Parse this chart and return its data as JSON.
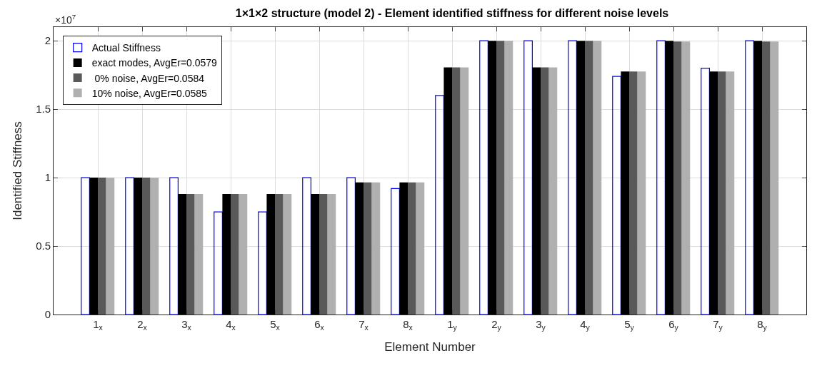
{
  "chart_data": {
    "type": "bar",
    "title": "1×1×2 structure (model 2) - Element identified stiffness for different noise levels",
    "xlabel": "Element Number",
    "ylabel": "Identified Stiffness",
    "annotations": [
      "×10$^{7}$"
    ],
    "categories": [
      "1$_{x}$",
      "2$_{x}$",
      "3$_{x}$",
      "4$_{x}$",
      "5$_{x}$",
      "6$_{x}$",
      "7$_{x}$",
      "8$_{x}$",
      "1$_{y}$",
      "2$_{y}$",
      "3$_{y}$",
      "4$_{y}$",
      "5$_{y}$",
      "6$_{y}$",
      "7$_{y}$",
      "8$_{y}$"
    ],
    "series": [
      {
        "name": "Actual Stiffness",
        "color": "#0000ff",
        "line_style": "dashed",
        "values": [
          1.0,
          1.0,
          1.0,
          0.75,
          0.75,
          1.0,
          1.0,
          0.92,
          1.6,
          2.0,
          2.0,
          2.0,
          1.74,
          2.0,
          1.8,
          2.0
        ]
      },
      {
        "name": "exact modes, AvgEr=0.0579",
        "color": "#000000",
        "values": [
          1.0,
          1.0,
          0.88,
          0.88,
          0.88,
          0.88,
          0.965,
          0.965,
          1.805,
          2.0,
          1.805,
          2.0,
          1.775,
          2.0,
          1.775,
          2.0
        ]
      },
      {
        "name": " 0% noise, AvgEr=0.0584",
        "color": "#595959",
        "values": [
          1.0,
          1.0,
          0.88,
          0.88,
          0.88,
          0.88,
          0.965,
          0.965,
          1.805,
          2.0,
          1.805,
          2.0,
          1.775,
          1.995,
          1.775,
          1.995
        ]
      },
      {
        "name": "10% noise, AvgEr=0.0585",
        "color": "#b0b0b0",
        "values": [
          1.0,
          1.0,
          0.88,
          0.88,
          0.88,
          0.88,
          0.965,
          0.965,
          1.805,
          2.0,
          1.805,
          2.0,
          1.775,
          1.995,
          1.775,
          1.995
        ]
      }
    ],
    "ylim": [
      0,
      2.1
    ],
    "yticks": [
      0,
      0.5,
      1,
      1.5,
      2
    ],
    "grid": true,
    "legend": "top left"
  }
}
